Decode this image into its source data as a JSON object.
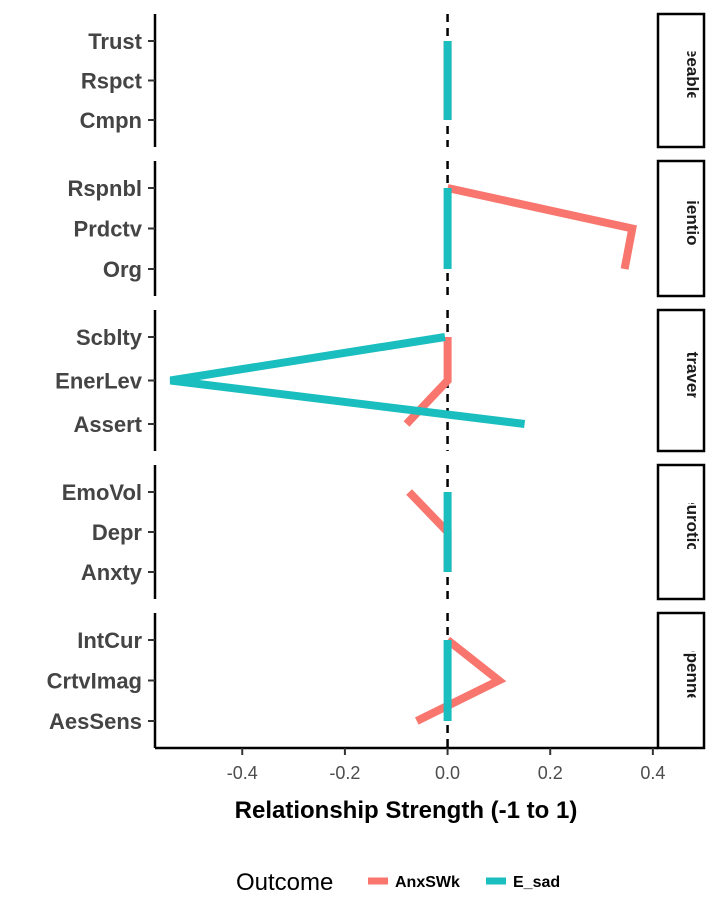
{
  "chart_data": {
    "type": "line",
    "xlabel": "Relationship Strength (-1 to 1)",
    "xlim": [
      -0.57,
      0.41
    ],
    "x_ticks": [
      "-0.4",
      "-0.2",
      "0.0",
      "0.2",
      "0.4"
    ],
    "x_tick_values": [
      -0.4,
      -0.2,
      0.0,
      0.2,
      0.4
    ],
    "reference_line": 0.0,
    "grid": false,
    "legend": {
      "title": "Outcome",
      "placement": "bottom"
    },
    "panels": [
      {
        "facet": "Agreeableness",
        "strip_visible": "greeablenes",
        "categories": [
          "Trust",
          "Rspct",
          "Cmpn"
        ],
        "series": [
          {
            "name": "AnxSWk",
            "color": "#F8766D",
            "values": [
              0.0,
              0.0,
              0.0
            ]
          },
          {
            "name": "E_sad",
            "color": "#1ABEBF",
            "values": [
              0.0,
              0.0,
              0.0
            ]
          }
        ]
      },
      {
        "facet": "Conscientiousness",
        "strip_visible": "scientiousn",
        "categories": [
          "Rspnbl",
          "Prdctv",
          "Org"
        ],
        "series": [
          {
            "name": "AnxSWk",
            "color": "#F8766D",
            "values": [
              0.0,
              0.36,
              0.345
            ]
          },
          {
            "name": "E_sad",
            "color": "#1ABEBF",
            "values": [
              0.0,
              0.0,
              0.0
            ]
          }
        ]
      },
      {
        "facet": "Extraversion",
        "strip_visible": "Extraversior",
        "categories": [
          "Scblty",
          "EnerLev",
          "Assert"
        ],
        "series": [
          {
            "name": "AnxSWk",
            "color": "#F8766D",
            "values": [
              0.0,
              0.0,
              -0.08
            ]
          },
          {
            "name": "E_sad",
            "color": "#1ABEBF",
            "values": [
              -0.005,
              -0.54,
              0.15
            ]
          }
        ]
      },
      {
        "facet": "Neuroticism",
        "strip_visible": "Neuroticism",
        "categories": [
          "EmoVol",
          "Depr",
          "Anxty"
        ],
        "series": [
          {
            "name": "AnxSWk",
            "color": "#F8766D",
            "values": [
              -0.075,
              0.0,
              0.0
            ]
          },
          {
            "name": "E_sad",
            "color": "#1ABEBF",
            "values": [
              0.0,
              0.0,
              0.0
            ]
          }
        ]
      },
      {
        "facet": "Openness",
        "strip_visible": "Openness",
        "categories": [
          "IntCur",
          "CrtvImag",
          "AesSens"
        ],
        "series": [
          {
            "name": "AnxSWk",
            "color": "#F8766D",
            "values": [
              0.0,
              0.1,
              -0.06
            ]
          },
          {
            "name": "E_sad",
            "color": "#1ABEBF",
            "values": [
              0.0,
              0.0,
              0.0
            ]
          }
        ]
      }
    ]
  }
}
